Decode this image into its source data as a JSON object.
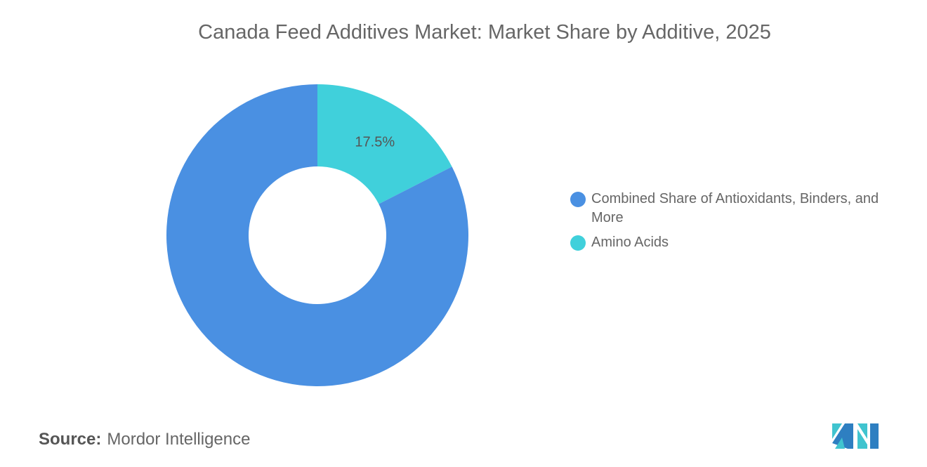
{
  "chart_data": {
    "type": "pie",
    "donut": true,
    "title": "Canada Feed Additives Market: Market Share by Additive, 2025",
    "slices": [
      {
        "name": "Amino Acids",
        "value": 17.5,
        "label": "17.5%",
        "color": "#40D0DB"
      },
      {
        "name": "Combined Share of Antioxidants, Binders, and More",
        "value": 82.5,
        "label": "",
        "color": "#4A90E2"
      }
    ],
    "legend_placement": "right"
  },
  "legend": [
    {
      "label": "Combined Share of Antioxidants, Binders, and More",
      "color": "#4A90E2"
    },
    {
      "label": "Amino Acids",
      "color": "#40D0DB"
    }
  ],
  "source": {
    "label": "Source:",
    "value": "Mordor Intelligence"
  }
}
